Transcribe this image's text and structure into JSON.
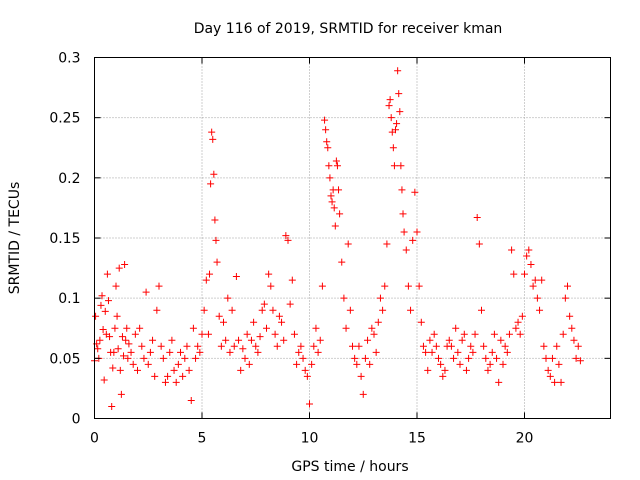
{
  "chart_data": {
    "type": "scatter",
    "title": "Day 116 of 2019, SRMTID for receiver kman",
    "xlabel": "GPS time / hours",
    "ylabel": "SRMTID / TECUs",
    "xlim": [
      0,
      24
    ],
    "ylim": [
      0,
      0.3
    ],
    "x_ticks": [
      0,
      5,
      10,
      15,
      20
    ],
    "x_tick_labels": [
      "0",
      "5",
      "10",
      "15",
      "20"
    ],
    "y_ticks": [
      0,
      0.05,
      0.1,
      0.15,
      0.2,
      0.25,
      0.3
    ],
    "y_tick_labels": [
      "0",
      "0.05",
      "0.1",
      "0.15",
      "0.2",
      "0.25",
      "0.3"
    ],
    "grid": true,
    "marker": "plus",
    "color": "#ff0000",
    "series": [
      {
        "name": "SRMTID",
        "x": [
          0.0,
          0.05,
          0.1,
          0.15,
          0.2,
          0.25,
          0.3,
          0.35,
          0.4,
          0.45,
          0.5,
          0.55,
          0.6,
          0.65,
          0.7,
          0.75,
          0.8,
          0.85,
          0.9,
          0.95,
          1.0,
          1.05,
          1.1,
          1.15,
          1.2,
          1.25,
          1.3,
          1.35,
          1.4,
          1.45,
          1.5,
          1.55,
          1.6,
          1.7,
          1.8,
          1.9,
          2.0,
          2.1,
          2.2,
          2.3,
          2.4,
          2.5,
          2.6,
          2.7,
          2.8,
          2.9,
          3.0,
          3.1,
          3.2,
          3.3,
          3.4,
          3.5,
          3.6,
          3.7,
          3.8,
          3.9,
          4.0,
          4.1,
          4.2,
          4.3,
          4.4,
          4.5,
          4.6,
          4.7,
          4.8,
          4.9,
          5.0,
          5.1,
          5.2,
          5.3,
          5.35,
          5.4,
          5.45,
          5.5,
          5.55,
          5.6,
          5.65,
          5.7,
          5.8,
          5.9,
          6.0,
          6.1,
          6.2,
          6.3,
          6.4,
          6.5,
          6.6,
          6.7,
          6.8,
          6.9,
          7.0,
          7.1,
          7.2,
          7.3,
          7.4,
          7.5,
          7.6,
          7.7,
          7.8,
          7.9,
          8.0,
          8.1,
          8.2,
          8.3,
          8.4,
          8.5,
          8.6,
          8.7,
          8.8,
          8.9,
          9.0,
          9.1,
          9.2,
          9.3,
          9.4,
          9.5,
          9.6,
          9.7,
          9.8,
          9.9,
          10.0,
          10.1,
          10.2,
          10.3,
          10.4,
          10.5,
          10.6,
          10.7,
          10.75,
          10.8,
          10.85,
          10.9,
          10.95,
          11.0,
          11.05,
          11.1,
          11.15,
          11.2,
          11.25,
          11.3,
          11.35,
          11.4,
          11.5,
          11.6,
          11.7,
          11.8,
          11.9,
          12.0,
          12.1,
          12.2,
          12.3,
          12.4,
          12.5,
          12.6,
          12.7,
          12.8,
          12.9,
          13.0,
          13.1,
          13.2,
          13.3,
          13.4,
          13.5,
          13.6,
          13.7,
          13.75,
          13.8,
          13.85,
          13.9,
          13.95,
          14.0,
          14.05,
          14.1,
          14.15,
          14.2,
          14.25,
          14.3,
          14.35,
          14.4,
          14.5,
          14.6,
          14.7,
          14.8,
          14.9,
          15.0,
          15.1,
          15.2,
          15.3,
          15.4,
          15.5,
          15.6,
          15.7,
          15.8,
          15.9,
          16.0,
          16.1,
          16.2,
          16.3,
          16.4,
          16.5,
          16.6,
          16.7,
          16.8,
          16.9,
          17.0,
          17.1,
          17.2,
          17.3,
          17.4,
          17.5,
          17.6,
          17.7,
          17.8,
          17.9,
          18.0,
          18.1,
          18.2,
          18.3,
          18.4,
          18.5,
          18.6,
          18.7,
          18.8,
          18.9,
          19.0,
          19.1,
          19.2,
          19.3,
          19.4,
          19.5,
          19.6,
          19.7,
          19.8,
          19.9,
          20.0,
          20.1,
          20.2,
          20.3,
          20.4,
          20.5,
          20.6,
          20.7,
          20.8,
          20.9,
          21.0,
          21.1,
          21.2,
          21.3,
          21.4,
          21.5,
          21.6,
          21.7,
          21.8,
          21.9,
          22.0,
          22.1,
          22.2,
          22.3,
          22.4,
          22.5,
          22.6
        ],
        "y": [
          0.048,
          0.085,
          0.062,
          0.058,
          0.05,
          0.065,
          0.094,
          0.102,
          0.074,
          0.032,
          0.089,
          0.07,
          0.12,
          0.098,
          0.068,
          0.055,
          0.01,
          0.042,
          0.055,
          0.075,
          0.11,
          0.085,
          0.058,
          0.125,
          0.04,
          0.02,
          0.068,
          0.052,
          0.128,
          0.065,
          0.075,
          0.05,
          0.062,
          0.055,
          0.045,
          0.07,
          0.04,
          0.075,
          0.06,
          0.05,
          0.105,
          0.045,
          0.055,
          0.065,
          0.035,
          0.09,
          0.11,
          0.06,
          0.05,
          0.03,
          0.035,
          0.055,
          0.065,
          0.04,
          0.03,
          0.045,
          0.055,
          0.035,
          0.05,
          0.06,
          0.04,
          0.015,
          0.075,
          0.05,
          0.06,
          0.055,
          0.07,
          0.09,
          0.115,
          0.07,
          0.12,
          0.195,
          0.238,
          0.232,
          0.203,
          0.165,
          0.148,
          0.13,
          0.085,
          0.06,
          0.08,
          0.065,
          0.1,
          0.055,
          0.09,
          0.06,
          0.118,
          0.065,
          0.04,
          0.058,
          0.05,
          0.07,
          0.045,
          0.065,
          0.08,
          0.06,
          0.055,
          0.068,
          0.09,
          0.095,
          0.075,
          0.12,
          0.11,
          0.09,
          0.07,
          0.06,
          0.085,
          0.08,
          0.065,
          0.152,
          0.148,
          0.095,
          0.115,
          0.07,
          0.045,
          0.055,
          0.06,
          0.05,
          0.04,
          0.035,
          0.012,
          0.045,
          0.06,
          0.075,
          0.055,
          0.065,
          0.11,
          0.248,
          0.24,
          0.23,
          0.225,
          0.21,
          0.2,
          0.185,
          0.18,
          0.19,
          0.175,
          0.16,
          0.214,
          0.21,
          0.19,
          0.17,
          0.13,
          0.1,
          0.075,
          0.145,
          0.09,
          0.06,
          0.05,
          0.045,
          0.06,
          0.035,
          0.02,
          0.05,
          0.065,
          0.045,
          0.075,
          0.07,
          0.055,
          0.08,
          0.1,
          0.09,
          0.11,
          0.145,
          0.26,
          0.265,
          0.25,
          0.238,
          0.225,
          0.21,
          0.24,
          0.245,
          0.289,
          0.27,
          0.255,
          0.21,
          0.19,
          0.17,
          0.155,
          0.14,
          0.11,
          0.09,
          0.148,
          0.188,
          0.155,
          0.11,
          0.08,
          0.06,
          0.055,
          0.04,
          0.065,
          0.055,
          0.07,
          0.06,
          0.05,
          0.045,
          0.035,
          0.04,
          0.06,
          0.065,
          0.06,
          0.05,
          0.075,
          0.055,
          0.045,
          0.065,
          0.07,
          0.04,
          0.05,
          0.06,
          0.055,
          0.07,
          0.167,
          0.145,
          0.09,
          0.06,
          0.05,
          0.04,
          0.045,
          0.055,
          0.07,
          0.05,
          0.03,
          0.065,
          0.045,
          0.06,
          0.055,
          0.07,
          0.14,
          0.12,
          0.075,
          0.08,
          0.07,
          0.085,
          0.12,
          0.135,
          0.14,
          0.128,
          0.11,
          0.115,
          0.1,
          0.09,
          0.115,
          0.06,
          0.05,
          0.04,
          0.035,
          0.05,
          0.03,
          0.06,
          0.045,
          0.03,
          0.07,
          0.1,
          0.11,
          0.085,
          0.075,
          0.065,
          0.05,
          0.06,
          0.048
        ]
      }
    ]
  }
}
